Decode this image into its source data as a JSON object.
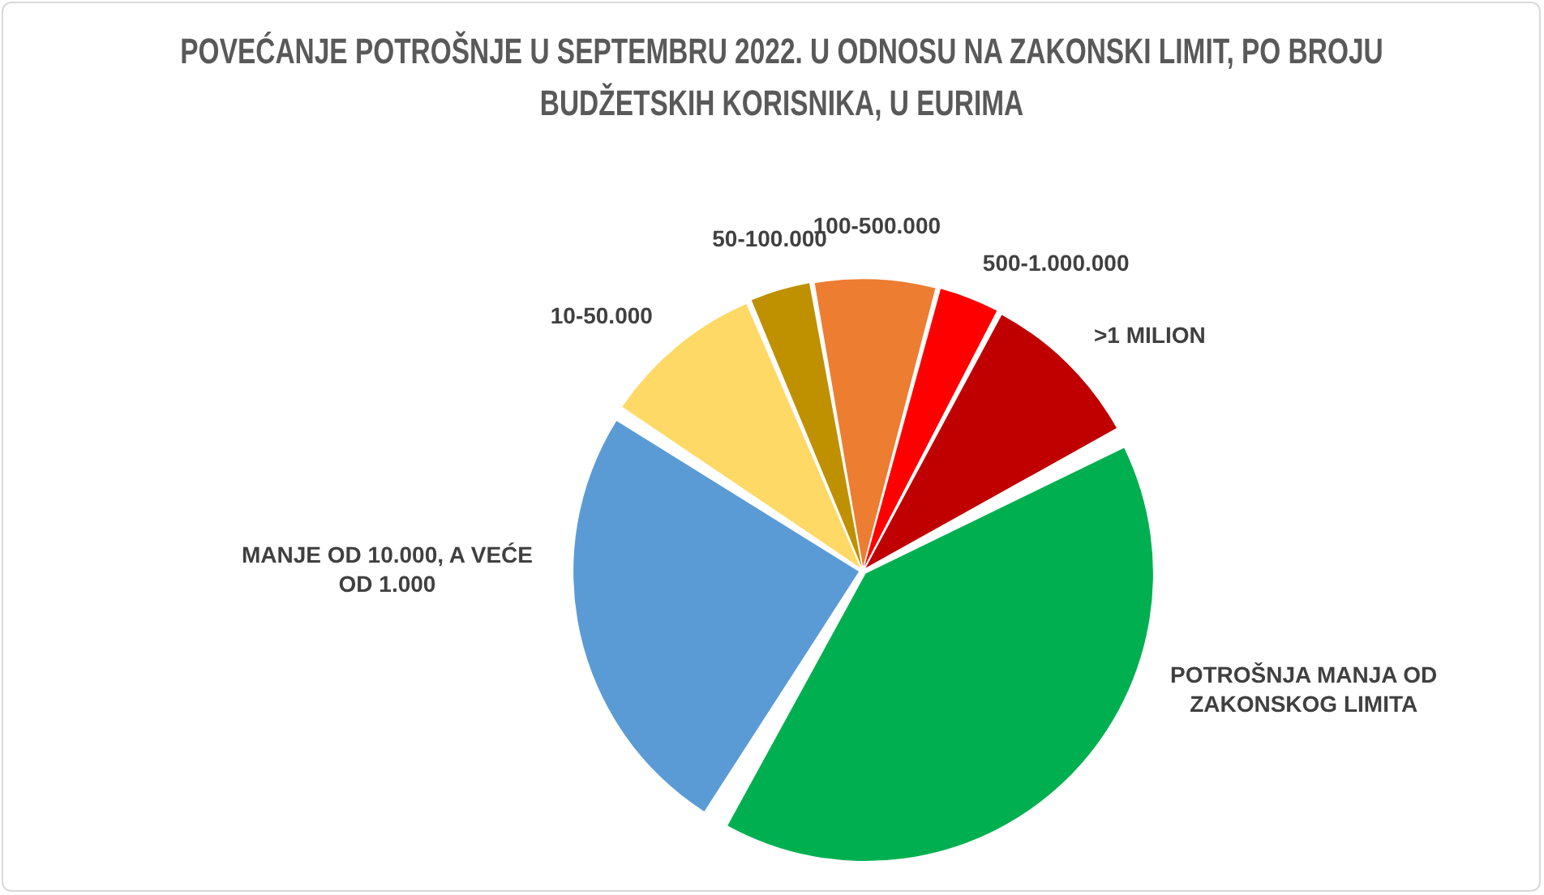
{
  "chart_data": {
    "type": "pie",
    "title": "POVEĆANJE POTROŠNJE U SEPTEMBRU 2022. U ODNOSU NA ZAKONSKI LIMIT, PO BROJU BUDŽETSKIH KORISNIKA, U EURIMA",
    "categories": [
      "POTROŠNJA MANJA OD ZAKONSKOG LIMITA",
      "MANJE OD 10.000, A VEĆE OD 1.000",
      "10-50.000",
      "50-100.000",
      "100-500.000",
      "500-1.000.000",
      ">1 MILION"
    ],
    "values": [
      41.6,
      25.6,
      9.4,
      3.5,
      7.0,
      3.5,
      9.4
    ],
    "colors": [
      "#00b050",
      "#5b9bd5",
      "#ffd966",
      "#bf9000",
      "#ed7d31",
      "#ff0000",
      "#c00000"
    ]
  }
}
